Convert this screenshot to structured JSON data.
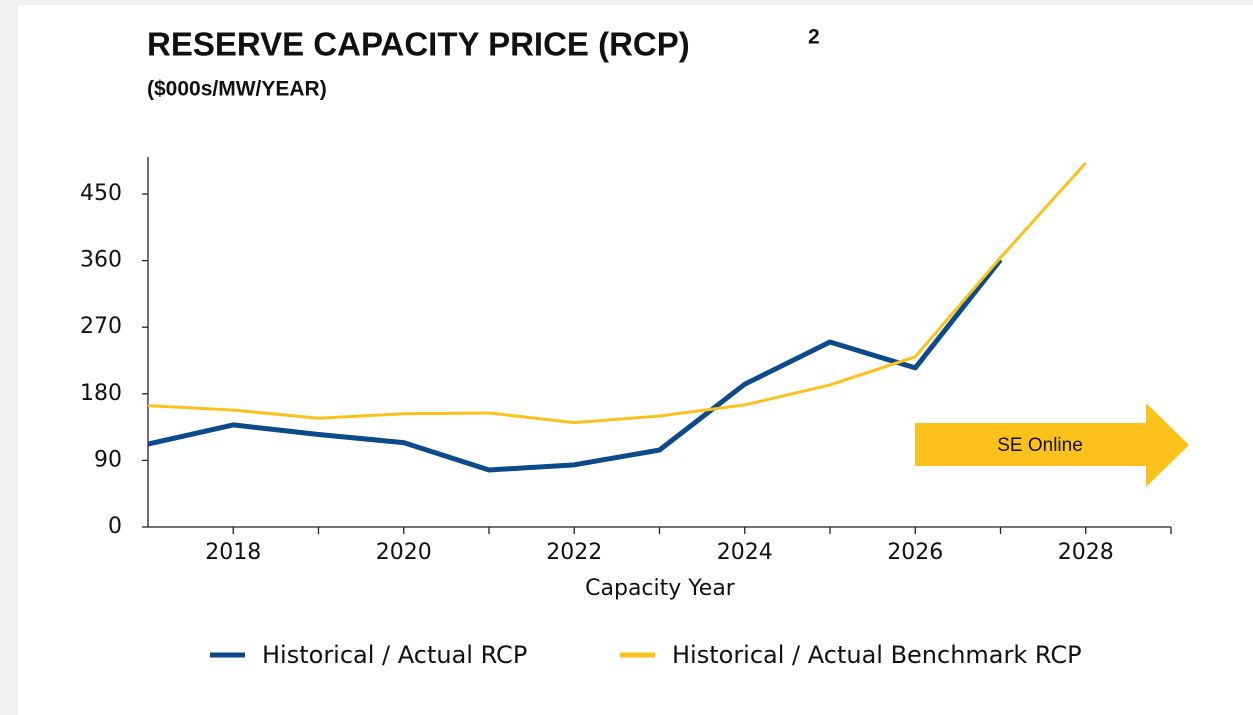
{
  "chart_data": {
    "type": "line",
    "title": "RESERVE CAPACITY PRICE (RCP)",
    "title_note": "2",
    "subtitle": "($000s/MW/YEAR)",
    "xlabel": "Capacity Year",
    "annotation": "SE Online",
    "x": [
      2017,
      2018,
      2019,
      2020,
      2021,
      2022,
      2023,
      2024,
      2025,
      2026,
      2027,
      2028
    ],
    "series": [
      {
        "name": "Historical / Actual RCP",
        "color": "#0b4a8b",
        "values": [
          112,
          138,
          125,
          114,
          77,
          84,
          104,
          193,
          250,
          215,
          361,
          null
        ]
      },
      {
        "name": "Historical / Actual Benchmark RCP",
        "color": "#fcc21b",
        "values": [
          164,
          158,
          147,
          153,
          154,
          141,
          150,
          165,
          192,
          230,
          364,
          492
        ]
      }
    ],
    "xlim": [
      2017,
      2029
    ],
    "xticks": [
      2018,
      2020,
      2022,
      2024,
      2026,
      2028
    ],
    "xminorticks": [
      2019,
      2021,
      2023,
      2025,
      2027,
      2029
    ],
    "ylim": [
      0,
      500
    ],
    "yticks": [
      0,
      90,
      180,
      270,
      360,
      450
    ],
    "grid": false,
    "legend": "bottom"
  }
}
